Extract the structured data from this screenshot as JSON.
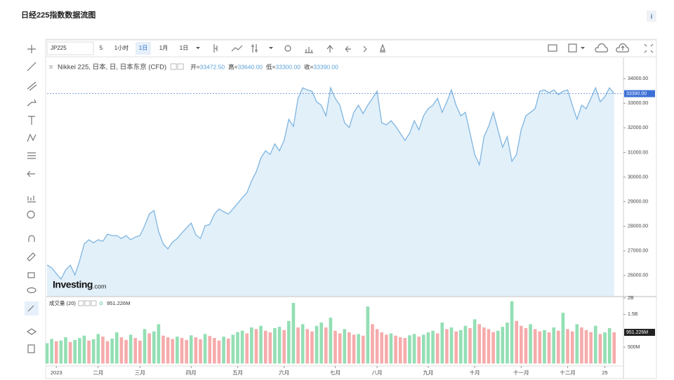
{
  "page_title": "日经225指数数据流图",
  "info_icon": "i",
  "toolbar": {
    "symbol": "JP225",
    "intervals": [
      "5",
      "1小时",
      "1日",
      "1月",
      "1日"
    ]
  },
  "quote": {
    "labels": [
      "开=",
      "高=",
      "低=",
      "收="
    ],
    "values": [
      33472.5,
      33640,
      33300,
      33390
    ],
    "value_labels": [
      "33472.50",
      "33640.00",
      "33300.00",
      "33390.00"
    ]
  },
  "chart_data": [
    {
      "type": "area",
      "legend": "Nikkei 225, 日本, 日, 日本东京 (CFD)",
      "watermark": "Investing",
      "watermark_suffix": ".com",
      "color": "#7fb5e0",
      "fill": "#e2f0fa",
      "marker_color": "#3d6fd6",
      "last_value_label": "33390.00",
      "values": [
        26420,
        26310,
        26080,
        25850,
        26220,
        26420,
        26020,
        26590,
        27280,
        27450,
        27330,
        27450,
        27390,
        27680,
        27620,
        27620,
        27500,
        27620,
        27450,
        27560,
        27620,
        28020,
        28500,
        28640,
        27790,
        27280,
        27080,
        27360,
        27500,
        27730,
        27930,
        28130,
        27650,
        27500,
        28020,
        28070,
        28500,
        28700,
        28590,
        28500,
        28700,
        28930,
        29160,
        29360,
        29840,
        30210,
        30780,
        31070,
        30920,
        31350,
        31070,
        31490,
        32350,
        32060,
        33200,
        33630,
        33540,
        33490,
        33060,
        32920,
        32490,
        33630,
        33200,
        32920,
        32210,
        32010,
        32630,
        32920,
        32580,
        32920,
        33200,
        33490,
        32210,
        32120,
        32290,
        32060,
        31780,
        31490,
        31780,
        32290,
        31920,
        32490,
        32780,
        32920,
        33200,
        32630,
        33060,
        33540,
        32920,
        32490,
        32630,
        31780,
        30920,
        30500,
        31640,
        32060,
        32630,
        31920,
        31210,
        31640,
        30640,
        30920,
        31920,
        32490,
        32630,
        32780,
        33490,
        33540,
        33430,
        33540,
        33350,
        33490,
        33540,
        32920,
        32350,
        32920,
        32780,
        33200,
        33630,
        33060,
        33260,
        33630,
        33390
      ],
      "xlim": [
        0,
        124
      ],
      "xticks": [
        {
          "value": 2,
          "label": "2023"
        },
        {
          "value": 11,
          "label": "二月"
        },
        {
          "value": 20,
          "label": "三月"
        },
        {
          "value": 31,
          "label": "四月"
        },
        {
          "value": 41,
          "label": "五月"
        },
        {
          "value": 51,
          "label": "六月"
        },
        {
          "value": 62,
          "label": "七月"
        },
        {
          "value": 71,
          "label": "八月"
        },
        {
          "value": 82,
          "label": "九月"
        },
        {
          "value": 92,
          "label": "十月"
        },
        {
          "value": 102,
          "label": "十一月"
        },
        {
          "value": 112,
          "label": "十二月"
        },
        {
          "value": 120,
          "label": "25"
        }
      ],
      "ylim": [
        25170,
        34860
      ],
      "yticks": [
        {
          "value": 34000,
          "label": "34000.00"
        },
        {
          "value": 33000,
          "label": "33000.00"
        },
        {
          "value": 32000,
          "label": "32000.00"
        },
        {
          "value": 31000,
          "label": "31000.00"
        },
        {
          "value": 30000,
          "label": "30000.00"
        },
        {
          "value": 29000,
          "label": "29000.00"
        },
        {
          "value": 28000,
          "label": "28000.00"
        },
        {
          "value": 27000,
          "label": "27000.00"
        },
        {
          "value": 26000,
          "label": "26000.00"
        }
      ]
    },
    {
      "type": "bar",
      "legend": "成交量 (20)",
      "legend_values": [
        "0",
        "951.226M"
      ],
      "up_color": "#93dfb4",
      "down_color": "#f6abab",
      "marker_color": "#222222",
      "values": [
        0.62,
        0.75,
        0.68,
        0.7,
        0.8,
        0.66,
        0.72,
        0.78,
        0.85,
        0.7,
        0.74,
        0.9,
        0.82,
        0.68,
        0.76,
        0.95,
        0.8,
        0.72,
        0.88,
        0.78,
        0.7,
        1.05,
        0.92,
        0.98,
        1.2,
        0.85,
        0.8,
        0.75,
        0.82,
        0.78,
        0.72,
        0.86,
        0.8,
        0.74,
        0.9,
        0.84,
        0.78,
        0.7,
        0.82,
        0.76,
        0.88,
        0.96,
        1.0,
        0.92,
        1.1,
        1.05,
        1.15,
        1.0,
        0.95,
        1.08,
        1.12,
        1.02,
        1.3,
        1.85,
        1.1,
        1.2,
        1.05,
        0.98,
        1.15,
        1.25,
        1.1,
        1.4,
        1.0,
        0.92,
        1.05,
        0.95,
        0.88,
        0.9,
        0.85,
        1.74,
        1.2,
        1.05,
        0.95,
        0.88,
        0.92,
        0.85,
        0.8,
        0.78,
        0.86,
        0.9,
        0.82,
        0.88,
        0.95,
        1.0,
        0.92,
        1.25,
        1.05,
        1.1,
        0.98,
        1.02,
        1.15,
        1.08,
        1.35,
        1.2,
        1.1,
        1.05,
        0.96,
        1.0,
        1.12,
        1.25,
        1.9,
        1.3,
        1.15,
        1.08,
        1.2,
        1.05,
        0.98,
        1.02,
        0.95,
        1.1,
        1.0,
        1.55,
        1.05,
        0.98,
        1.2,
        1.1,
        1.02,
        0.96,
        1.15,
        0.9,
        0.95,
        1.08,
        0.951226
      ],
      "last_value_label": "951.226M",
      "ylim": [
        -0.075,
        2.0
      ],
      "yticks": [
        {
          "value": 2,
          "label": "2B"
        },
        {
          "value": 1.5,
          "label": "1.5B"
        },
        {
          "value": 0.5,
          "label": "500M"
        }
      ]
    }
  ]
}
